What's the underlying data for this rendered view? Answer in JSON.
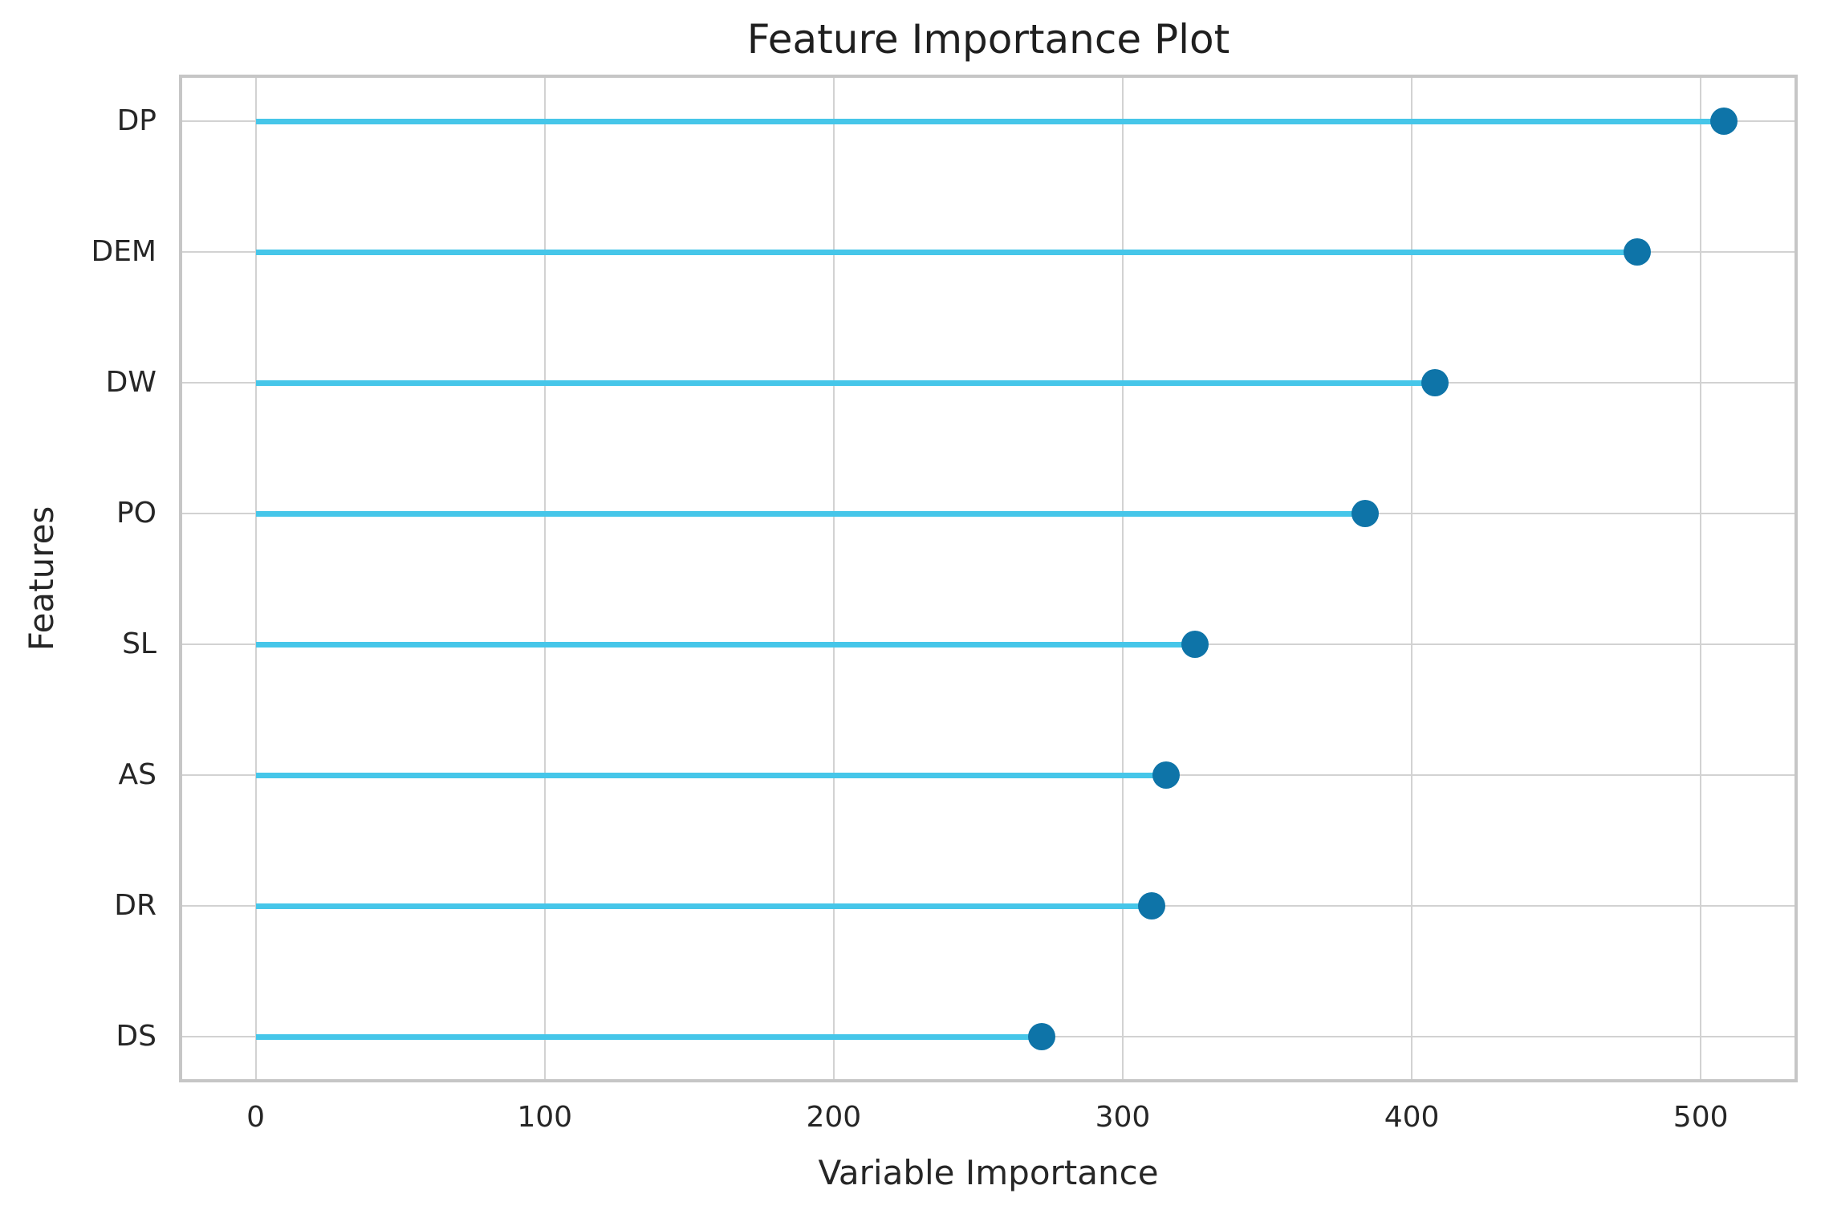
{
  "chart_data": {
    "type": "scatter",
    "variant": "horizontal-lollipop",
    "title": "Feature Importance Plot",
    "xlabel": "Variable Importance",
    "ylabel": "Features",
    "categories": [
      "DP",
      "DEM",
      "DW",
      "PO",
      "SL",
      "AS",
      "DR",
      "DS"
    ],
    "values": [
      508,
      478,
      408,
      384,
      325,
      315,
      310,
      272
    ],
    "xticks": [
      0,
      100,
      200,
      300,
      400,
      500
    ],
    "xlim": [
      -26,
      533
    ],
    "grid": true,
    "legend": false,
    "colors": {
      "stem": "#46c6e9",
      "dot": "#0e74a8",
      "grid": "#d2d2d2",
      "border": "#c6c6c6",
      "tick_text": "#262626",
      "title_text": "#1f1f1f",
      "background": "#ffffff"
    }
  }
}
